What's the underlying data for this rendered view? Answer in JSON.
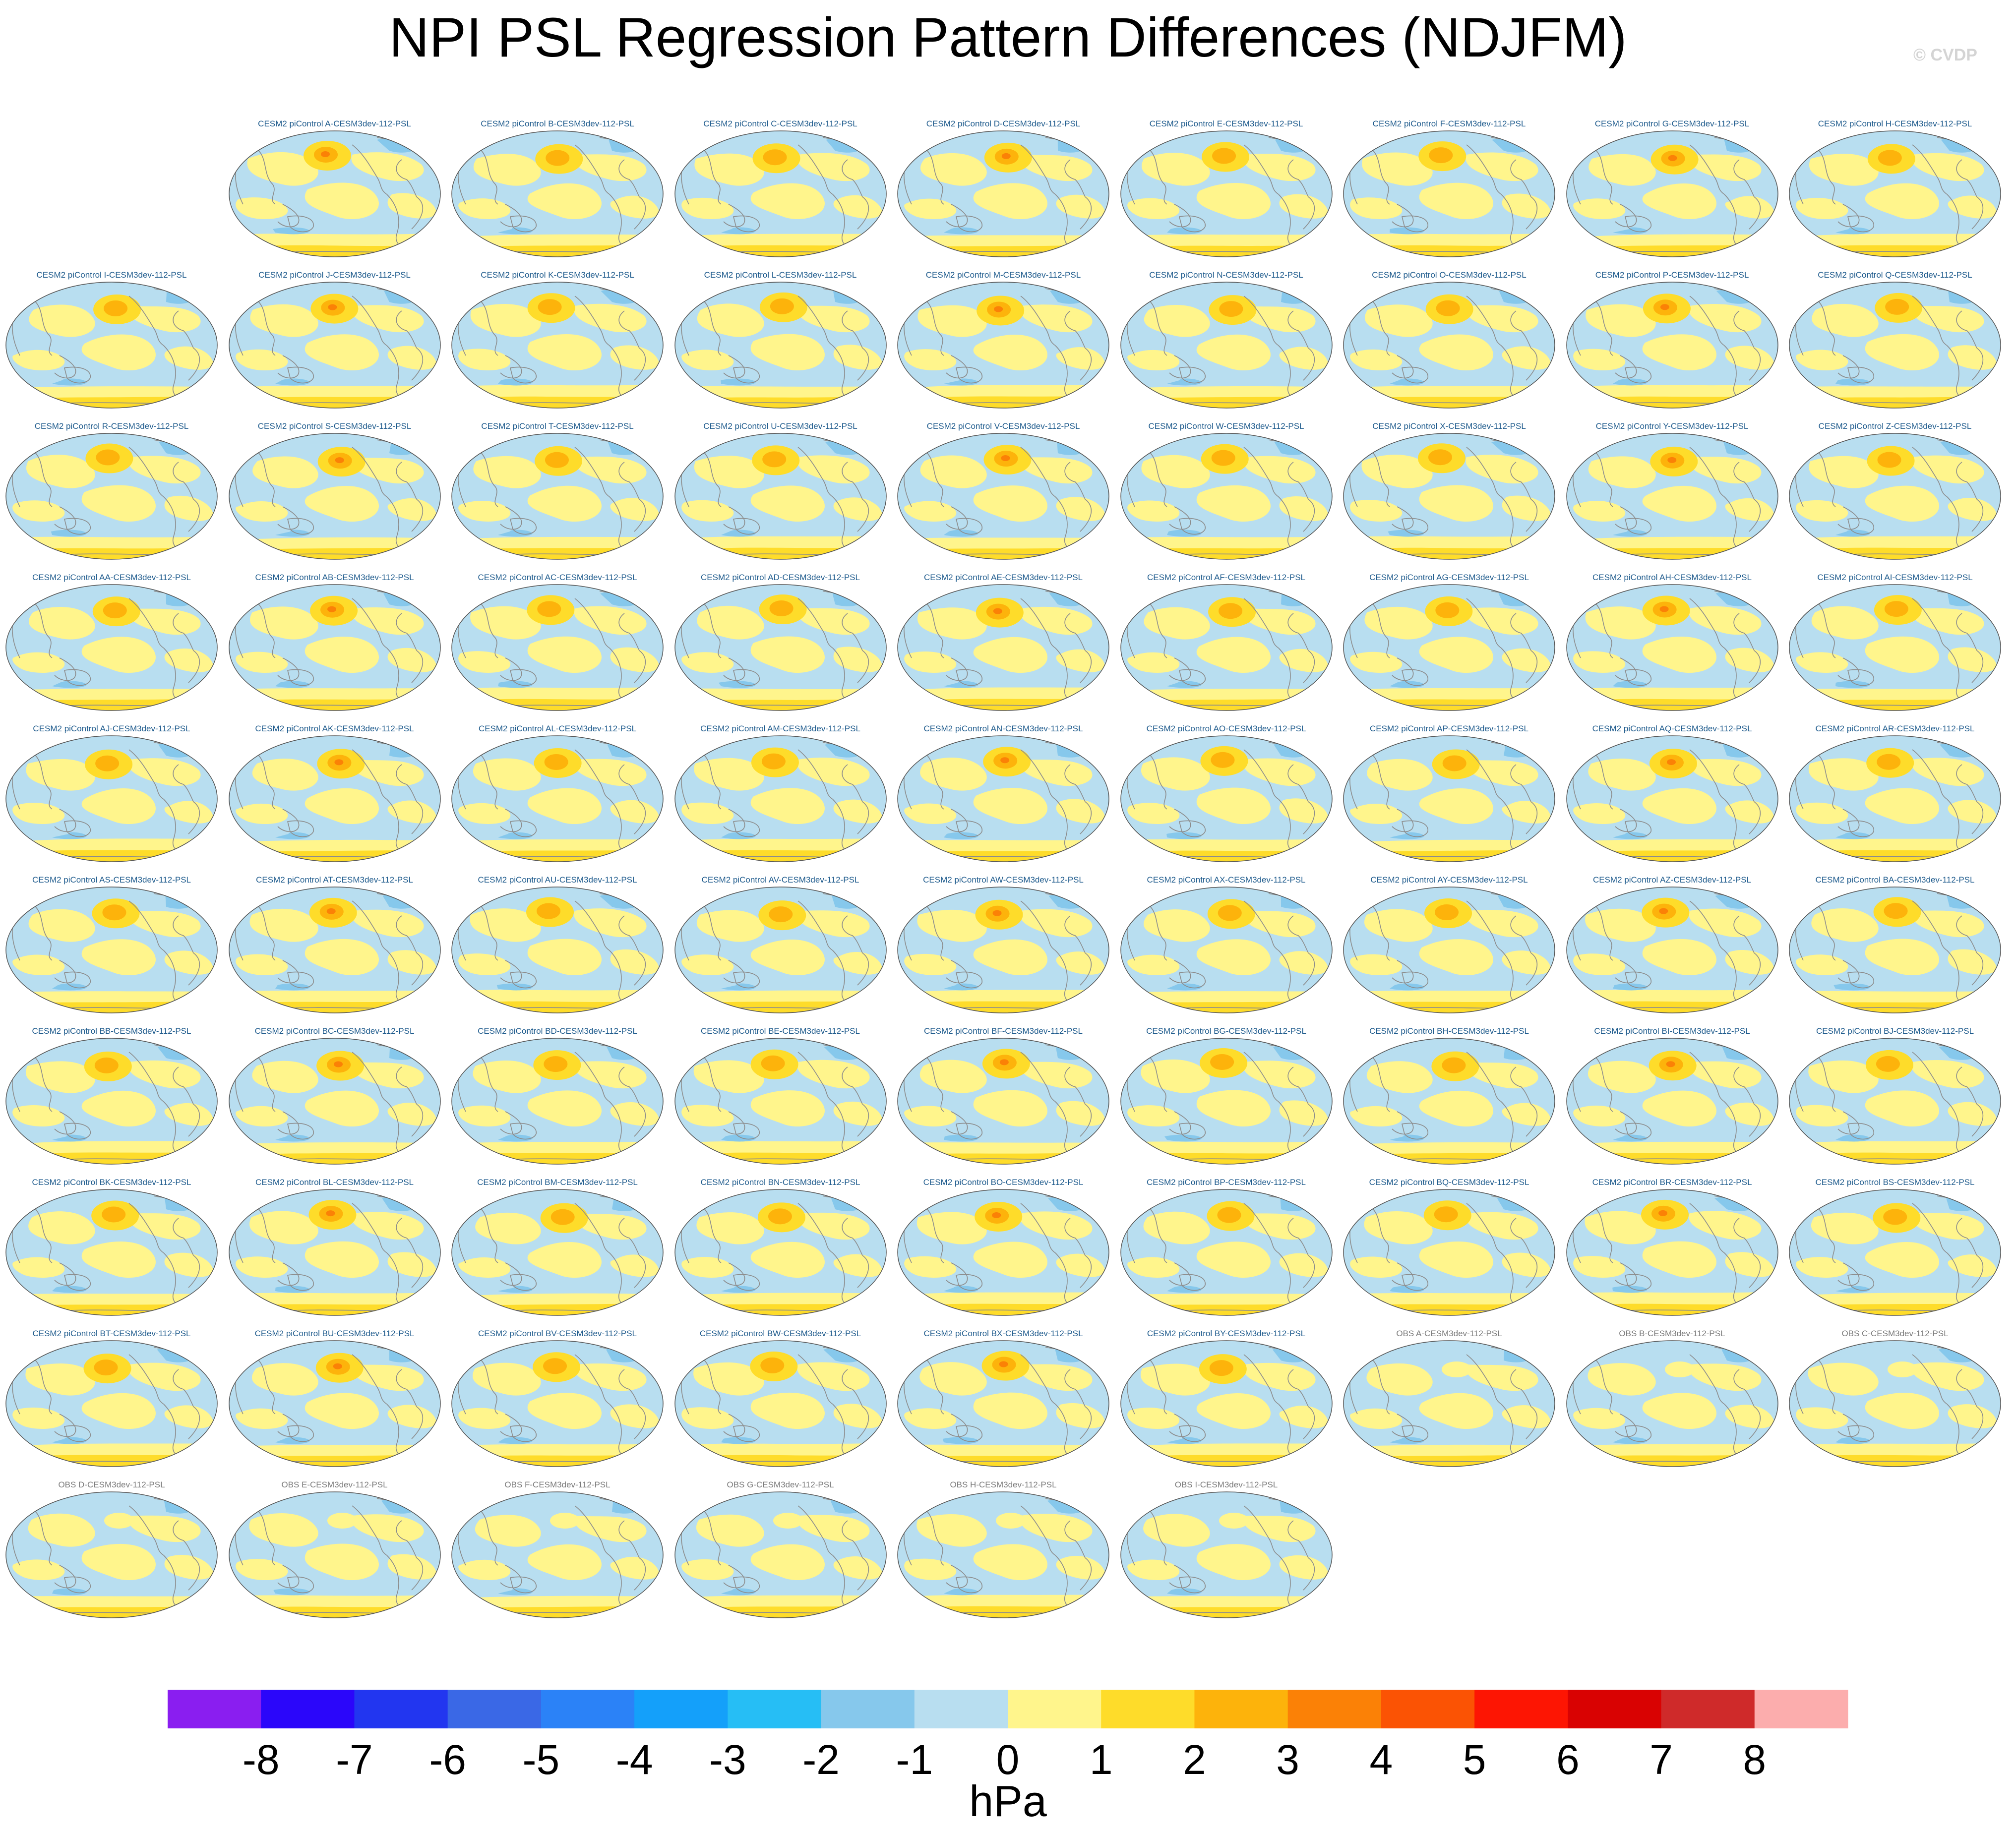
{
  "title": "NPI PSL Regression Pattern Differences (NDJFM)",
  "watermark": "© CVDP",
  "chart_data": {
    "type": "map-panel-grid",
    "title": "NPI PSL Regression Pattern Differences (NDJFM)",
    "season": "NDJFM",
    "variable": "PSL",
    "units": "hPa",
    "projection": "Robinson (global, Pacific-centered)",
    "panels": [
      {
        "label": "CESM2 piControl A-CESM3dev-112-PSL",
        "kind": "model"
      },
      {
        "label": "CESM2 piControl B-CESM3dev-112-PSL",
        "kind": "model"
      },
      {
        "label": "CESM2 piControl C-CESM3dev-112-PSL",
        "kind": "model"
      },
      {
        "label": "CESM2 piControl D-CESM3dev-112-PSL",
        "kind": "model"
      },
      {
        "label": "CESM2 piControl E-CESM3dev-112-PSL",
        "kind": "model"
      },
      {
        "label": "CESM2 piControl F-CESM3dev-112-PSL",
        "kind": "model"
      },
      {
        "label": "CESM2 piControl G-CESM3dev-112-PSL",
        "kind": "model"
      },
      {
        "label": "CESM2 piControl H-CESM3dev-112-PSL",
        "kind": "model"
      },
      {
        "label": "CESM2 piControl I-CESM3dev-112-PSL",
        "kind": "model"
      },
      {
        "label": "CESM2 piControl J-CESM3dev-112-PSL",
        "kind": "model"
      },
      {
        "label": "CESM2 piControl K-CESM3dev-112-PSL",
        "kind": "model"
      },
      {
        "label": "CESM2 piControl L-CESM3dev-112-PSL",
        "kind": "model"
      },
      {
        "label": "CESM2 piControl M-CESM3dev-112-PSL",
        "kind": "model"
      },
      {
        "label": "CESM2 piControl N-CESM3dev-112-PSL",
        "kind": "model"
      },
      {
        "label": "CESM2 piControl O-CESM3dev-112-PSL",
        "kind": "model"
      },
      {
        "label": "CESM2 piControl P-CESM3dev-112-PSL",
        "kind": "model"
      },
      {
        "label": "CESM2 piControl Q-CESM3dev-112-PSL",
        "kind": "model"
      },
      {
        "label": "CESM2 piControl R-CESM3dev-112-PSL",
        "kind": "model"
      },
      {
        "label": "CESM2 piControl S-CESM3dev-112-PSL",
        "kind": "model"
      },
      {
        "label": "CESM2 piControl T-CESM3dev-112-PSL",
        "kind": "model"
      },
      {
        "label": "CESM2 piControl U-CESM3dev-112-PSL",
        "kind": "model"
      },
      {
        "label": "CESM2 piControl V-CESM3dev-112-PSL",
        "kind": "model"
      },
      {
        "label": "CESM2 piControl W-CESM3dev-112-PSL",
        "kind": "model"
      },
      {
        "label": "CESM2 piControl X-CESM3dev-112-PSL",
        "kind": "model"
      },
      {
        "label": "CESM2 piControl Y-CESM3dev-112-PSL",
        "kind": "model"
      },
      {
        "label": "CESM2 piControl Z-CESM3dev-112-PSL",
        "kind": "model"
      },
      {
        "label": "CESM2 piControl AA-CESM3dev-112-PSL",
        "kind": "model"
      },
      {
        "label": "CESM2 piControl AB-CESM3dev-112-PSL",
        "kind": "model"
      },
      {
        "label": "CESM2 piControl AC-CESM3dev-112-PSL",
        "kind": "model"
      },
      {
        "label": "CESM2 piControl AD-CESM3dev-112-PSL",
        "kind": "model"
      },
      {
        "label": "CESM2 piControl AE-CESM3dev-112-PSL",
        "kind": "model"
      },
      {
        "label": "CESM2 piControl AF-CESM3dev-112-PSL",
        "kind": "model"
      },
      {
        "label": "CESM2 piControl AG-CESM3dev-112-PSL",
        "kind": "model"
      },
      {
        "label": "CESM2 piControl AH-CESM3dev-112-PSL",
        "kind": "model"
      },
      {
        "label": "CESM2 piControl AI-CESM3dev-112-PSL",
        "kind": "model"
      },
      {
        "label": "CESM2 piControl AJ-CESM3dev-112-PSL",
        "kind": "model"
      },
      {
        "label": "CESM2 piControl AK-CESM3dev-112-PSL",
        "kind": "model"
      },
      {
        "label": "CESM2 piControl AL-CESM3dev-112-PSL",
        "kind": "model"
      },
      {
        "label": "CESM2 piControl AM-CESM3dev-112-PSL",
        "kind": "model"
      },
      {
        "label": "CESM2 piControl AN-CESM3dev-112-PSL",
        "kind": "model"
      },
      {
        "label": "CESM2 piControl AO-CESM3dev-112-PSL",
        "kind": "model"
      },
      {
        "label": "CESM2 piControl AP-CESM3dev-112-PSL",
        "kind": "model"
      },
      {
        "label": "CESM2 piControl AQ-CESM3dev-112-PSL",
        "kind": "model"
      },
      {
        "label": "CESM2 piControl AR-CESM3dev-112-PSL",
        "kind": "model"
      },
      {
        "label": "CESM2 piControl AS-CESM3dev-112-PSL",
        "kind": "model"
      },
      {
        "label": "CESM2 piControl AT-CESM3dev-112-PSL",
        "kind": "model"
      },
      {
        "label": "CESM2 piControl AU-CESM3dev-112-PSL",
        "kind": "model"
      },
      {
        "label": "CESM2 piControl AV-CESM3dev-112-PSL",
        "kind": "model"
      },
      {
        "label": "CESM2 piControl AW-CESM3dev-112-PSL",
        "kind": "model"
      },
      {
        "label": "CESM2 piControl AX-CESM3dev-112-PSL",
        "kind": "model"
      },
      {
        "label": "CESM2 piControl AY-CESM3dev-112-PSL",
        "kind": "model"
      },
      {
        "label": "CESM2 piControl AZ-CESM3dev-112-PSL",
        "kind": "model"
      },
      {
        "label": "CESM2 piControl BA-CESM3dev-112-PSL",
        "kind": "model"
      },
      {
        "label": "CESM2 piControl BB-CESM3dev-112-PSL",
        "kind": "model"
      },
      {
        "label": "CESM2 piControl BC-CESM3dev-112-PSL",
        "kind": "model"
      },
      {
        "label": "CESM2 piControl BD-CESM3dev-112-PSL",
        "kind": "model"
      },
      {
        "label": "CESM2 piControl BE-CESM3dev-112-PSL",
        "kind": "model"
      },
      {
        "label": "CESM2 piControl BF-CESM3dev-112-PSL",
        "kind": "model"
      },
      {
        "label": "CESM2 piControl BG-CESM3dev-112-PSL",
        "kind": "model"
      },
      {
        "label": "CESM2 piControl BH-CESM3dev-112-PSL",
        "kind": "model"
      },
      {
        "label": "CESM2 piControl BI-CESM3dev-112-PSL",
        "kind": "model"
      },
      {
        "label": "CESM2 piControl BJ-CESM3dev-112-PSL",
        "kind": "model"
      },
      {
        "label": "CESM2 piControl BK-CESM3dev-112-PSL",
        "kind": "model"
      },
      {
        "label": "CESM2 piControl BL-CESM3dev-112-PSL",
        "kind": "model"
      },
      {
        "label": "CESM2 piControl BM-CESM3dev-112-PSL",
        "kind": "model"
      },
      {
        "label": "CESM2 piControl BN-CESM3dev-112-PSL",
        "kind": "model"
      },
      {
        "label": "CESM2 piControl BO-CESM3dev-112-PSL",
        "kind": "model"
      },
      {
        "label": "CESM2 piControl BP-CESM3dev-112-PSL",
        "kind": "model"
      },
      {
        "label": "CESM2 piControl BQ-CESM3dev-112-PSL",
        "kind": "model"
      },
      {
        "label": "CESM2 piControl BR-CESM3dev-112-PSL",
        "kind": "model"
      },
      {
        "label": "CESM2 piControl BS-CESM3dev-112-PSL",
        "kind": "model"
      },
      {
        "label": "CESM2 piControl BT-CESM3dev-112-PSL",
        "kind": "model"
      },
      {
        "label": "CESM2 piControl BU-CESM3dev-112-PSL",
        "kind": "model"
      },
      {
        "label": "CESM2 piControl BV-CESM3dev-112-PSL",
        "kind": "model"
      },
      {
        "label": "CESM2 piControl BW-CESM3dev-112-PSL",
        "kind": "model"
      },
      {
        "label": "CESM2 piControl BX-CESM3dev-112-PSL",
        "kind": "model"
      },
      {
        "label": "CESM2 piControl BY-CESM3dev-112-PSL",
        "kind": "model"
      },
      {
        "label": "OBS A-CESM3dev-112-PSL",
        "kind": "obs"
      },
      {
        "label": "OBS B-CESM3dev-112-PSL",
        "kind": "obs"
      },
      {
        "label": "OBS C-CESM3dev-112-PSL",
        "kind": "obs"
      },
      {
        "label": "OBS D-CESM3dev-112-PSL",
        "kind": "obs"
      },
      {
        "label": "OBS E-CESM3dev-112-PSL",
        "kind": "obs"
      },
      {
        "label": "OBS F-CESM3dev-112-PSL",
        "kind": "obs"
      },
      {
        "label": "OBS G-CESM3dev-112-PSL",
        "kind": "obs"
      },
      {
        "label": "OBS H-CESM3dev-112-PSL",
        "kind": "obs"
      },
      {
        "label": "OBS I-CESM3dev-112-PSL",
        "kind": "obs"
      }
    ],
    "colorbar": {
      "label": "hPa",
      "ticks": [
        "-8",
        "-7",
        "-6",
        "-5",
        "-4",
        "-3",
        "-2",
        "-1",
        "0",
        "1",
        "2",
        "3",
        "4",
        "5",
        "6",
        "7",
        "8"
      ],
      "colors": [
        "#8a1ef0",
        "#2b06fa",
        "#2236f0",
        "#3a68e6",
        "#2b82f7",
        "#14a0fa",
        "#26bef5",
        "#86c8ec",
        "#b8def0",
        "#fff58c",
        "#fedc2a",
        "#fdb30b",
        "#fb8106",
        "#fb5304",
        "#fd1503",
        "#d90202",
        "#cf2a2a",
        "#fcadad"
      ]
    }
  }
}
